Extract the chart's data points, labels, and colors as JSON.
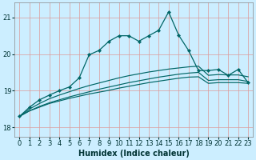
{
  "xlabel": "Humidex (Indice chaleur)",
  "background_color": "#cceeff",
  "grid_color": "#aaddcc",
  "line_color": "#006666",
  "x_values": [
    0,
    1,
    2,
    3,
    4,
    5,
    6,
    7,
    8,
    9,
    10,
    11,
    12,
    13,
    14,
    15,
    16,
    17,
    18,
    19,
    20,
    21,
    22,
    23
  ],
  "ylim": [
    17.75,
    21.4
  ],
  "xlim": [
    -0.5,
    23.5
  ],
  "yticks": [
    18,
    19,
    20,
    21
  ],
  "series_smooth": [
    [
      18.3,
      18.45,
      18.55,
      18.65,
      18.72,
      18.79,
      18.85,
      18.91,
      18.96,
      19.01,
      19.07,
      19.12,
      19.17,
      19.22,
      19.26,
      19.3,
      19.34,
      19.37,
      19.38,
      19.2,
      19.22,
      19.22,
      19.22,
      19.2
    ],
    [
      18.3,
      18.45,
      18.57,
      18.67,
      18.75,
      18.83,
      18.9,
      18.97,
      19.04,
      19.1,
      19.16,
      19.22,
      19.27,
      19.32,
      19.37,
      19.41,
      19.45,
      19.48,
      19.5,
      19.28,
      19.3,
      19.3,
      19.3,
      19.25
    ],
    [
      18.3,
      18.5,
      18.65,
      18.78,
      18.88,
      18.97,
      19.06,
      19.14,
      19.21,
      19.28,
      19.35,
      19.41,
      19.46,
      19.51,
      19.55,
      19.59,
      19.62,
      19.65,
      19.67,
      19.42,
      19.44,
      19.43,
      19.43,
      19.38
    ]
  ],
  "series_spiky": [
    18.3,
    18.55,
    18.75,
    18.88,
    19.0,
    19.1,
    19.35,
    19.98,
    20.1,
    20.35,
    20.5,
    20.5,
    20.35,
    20.5,
    20.65,
    21.15,
    20.52,
    20.1,
    19.55,
    19.55,
    19.58,
    19.42,
    19.58,
    19.22
  ]
}
